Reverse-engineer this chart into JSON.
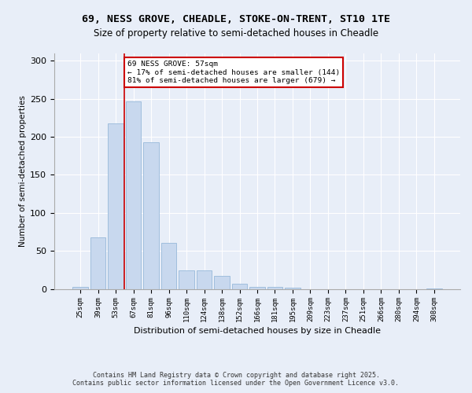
{
  "title1": "69, NESS GROVE, CHEADLE, STOKE-ON-TRENT, ST10 1TE",
  "title2": "Size of property relative to semi-detached houses in Cheadle",
  "xlabel": "Distribution of semi-detached houses by size in Cheadle",
  "ylabel": "Number of semi-detached properties",
  "categories": [
    "25sqm",
    "39sqm",
    "53sqm",
    "67sqm",
    "81sqm",
    "96sqm",
    "110sqm",
    "124sqm",
    "138sqm",
    "152sqm",
    "166sqm",
    "181sqm",
    "195sqm",
    "209sqm",
    "223sqm",
    "237sqm",
    "251sqm",
    "266sqm",
    "280sqm",
    "294sqm",
    "308sqm"
  ],
  "values": [
    3,
    68,
    218,
    246,
    193,
    60,
    24,
    24,
    17,
    7,
    3,
    3,
    2,
    0,
    0,
    0,
    0,
    0,
    0,
    0,
    1
  ],
  "bar_color": "#c8d8ee",
  "bar_edge_color": "#a0bedd",
  "vline_x": 2.5,
  "vline_color": "#cc0000",
  "annotation_title": "69 NESS GROVE: 57sqm",
  "annotation_line2": "← 17% of semi-detached houses are smaller (144)",
  "annotation_line3": "81% of semi-detached houses are larger (679) →",
  "annotation_box_color": "#cc0000",
  "ylim": [
    0,
    310
  ],
  "yticks": [
    0,
    50,
    100,
    150,
    200,
    250,
    300
  ],
  "footer1": "Contains HM Land Registry data © Crown copyright and database right 2025.",
  "footer2": "Contains public sector information licensed under the Open Government Licence v3.0.",
  "bg_color": "#e8eef8",
  "plot_bg_color": "#e8eef8",
  "title_fontsize": 9.5,
  "subtitle_fontsize": 8.5
}
